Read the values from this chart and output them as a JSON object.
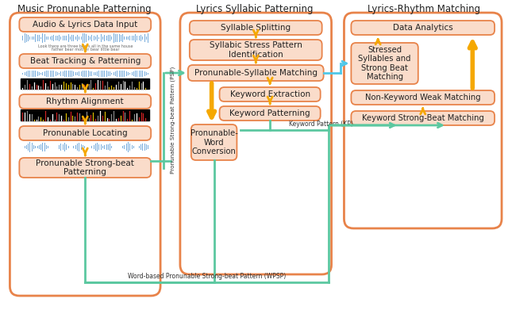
{
  "title_left": "Music Pronunable Patterning",
  "title_center": "Lyrics Syllabic Patterning",
  "title_right": "Lyrics-Rhythm Matching",
  "box_fill": "#FADCCA",
  "box_edge": "#E8834A",
  "outer_orange": "#E8834A",
  "outer_green": "#5CC8A0",
  "arrow_yellow": "#F5A800",
  "arrow_cyan": "#4FC8E8",
  "arrow_green": "#5CC8A0",
  "bg_color": "#FFFFFF",
  "psp_label": "Pronunable Strong-beat Pattern (PSP)",
  "kp_label": "Keyword Pattern (KP)",
  "wpsp_label": "Word-based Pronunable Strong-beat Pattern (WPSP)"
}
